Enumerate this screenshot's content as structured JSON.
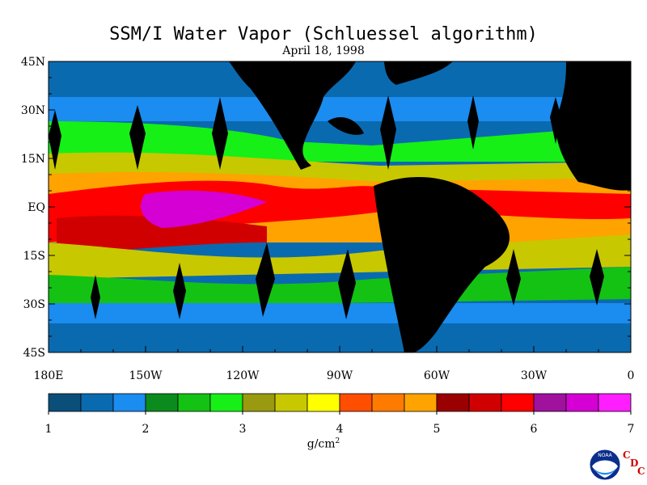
{
  "title": "SSM/I Water Vapor (Schluessel algorithm)",
  "subtitle": "April 18, 1998",
  "units_label": "g/cm",
  "units_superscript": "2",
  "logo": {
    "noaa_text": "NOAA",
    "cdc_letters": [
      "C",
      "D",
      "C"
    ]
  },
  "chart_data": {
    "type": "heatmap",
    "x_axis": {
      "range": [
        -180,
        0
      ],
      "ticks": [
        -180,
        -150,
        -120,
        -90,
        -60,
        -30,
        0
      ],
      "tick_labels": [
        "180E",
        "150W",
        "120W",
        "90W",
        "60W",
        "30W",
        "0"
      ]
    },
    "y_axis": {
      "range": [
        -45,
        45
      ],
      "ticks": [
        45,
        30,
        15,
        0,
        -15,
        -30,
        -45
      ],
      "tick_labels": [
        "45N",
        "30N",
        "15N",
        "EQ",
        "15S",
        "30S",
        "45S"
      ]
    },
    "colorbar": {
      "range": [
        1,
        7
      ],
      "tick_values": [
        1,
        2,
        3,
        4,
        5,
        6,
        7
      ],
      "tick_labels": [
        "1",
        "2",
        "3",
        "4",
        "5",
        "6",
        "7"
      ],
      "colors": [
        "#0a4f7a",
        "#0a6ab0",
        "#1b8cf0",
        "#0b8a1e",
        "#14c214",
        "#16f016",
        "#9a9a10",
        "#c8c800",
        "#ffff00",
        "#ff4e00",
        "#ff7b00",
        "#ffa300",
        "#9a0000",
        "#d00000",
        "#ff0000",
        "#a0119e",
        "#d400d4",
        "#ff1eff"
      ]
    }
  }
}
